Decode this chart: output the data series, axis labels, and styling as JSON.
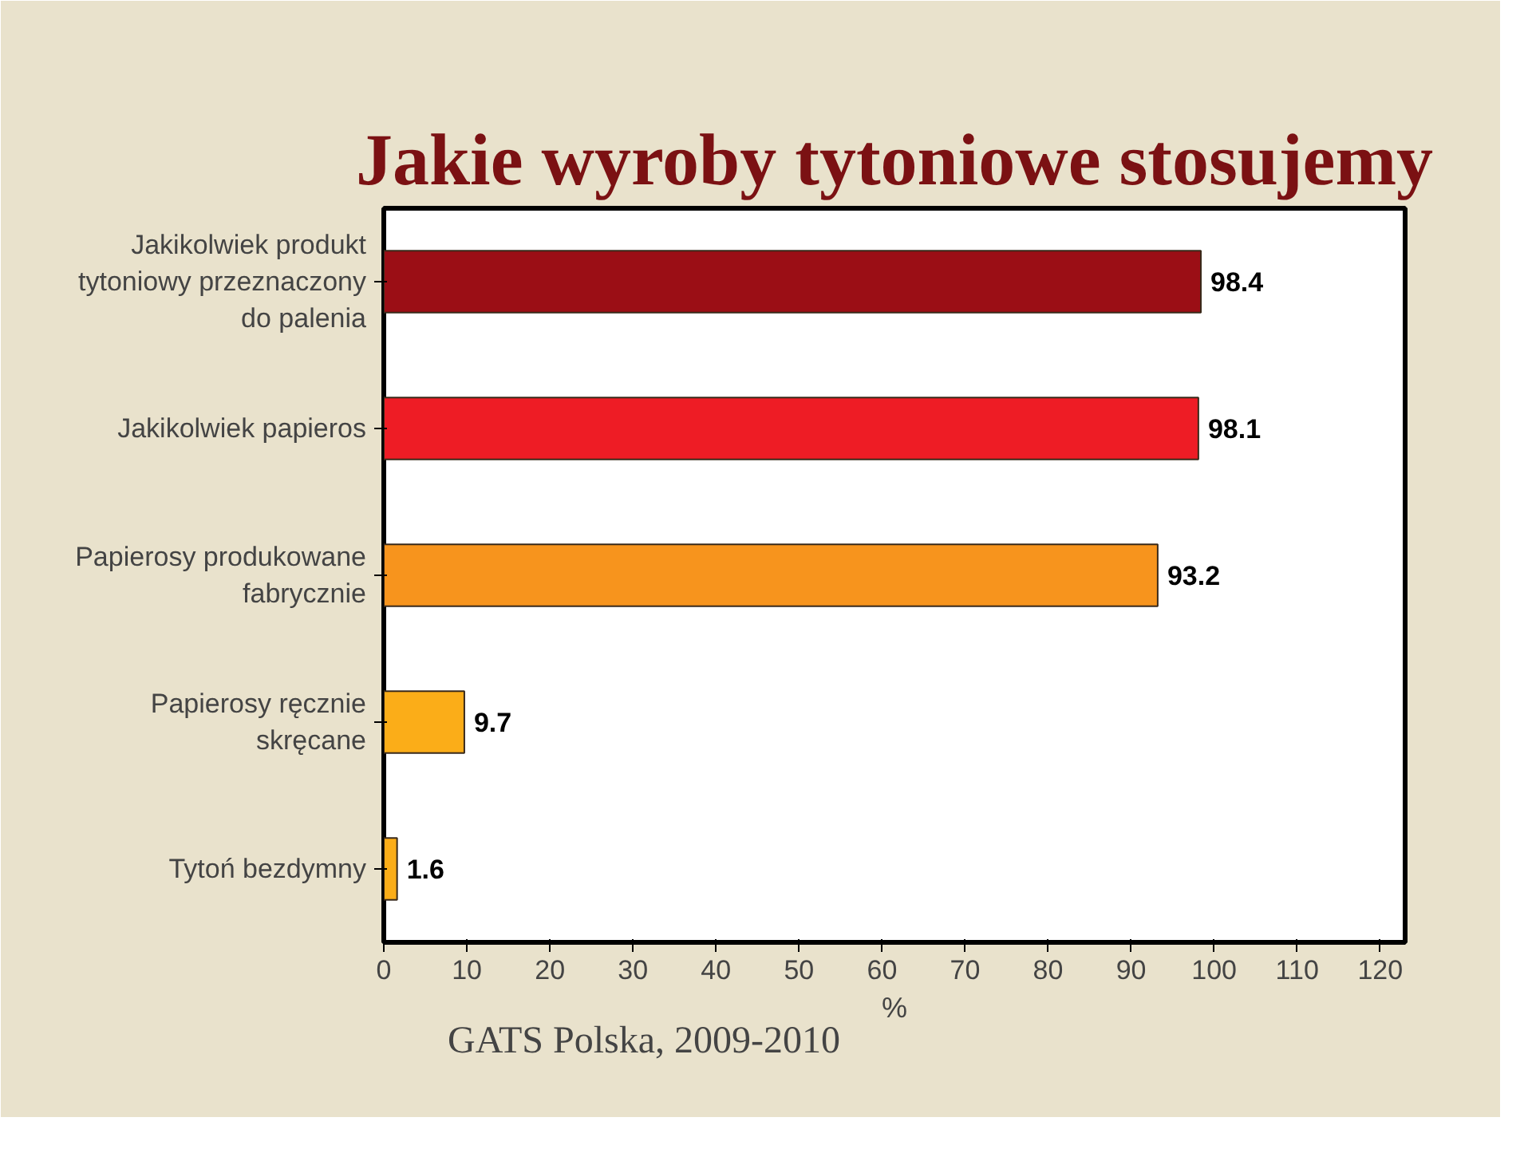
{
  "chart_data": {
    "type": "bar",
    "orientation": "horizontal",
    "title": "Jakie wyroby tytoniowe stosujemy",
    "categories": [
      "Jakikolwiek produkt tytoniowy przeznaczony do palenia",
      "Jakikolwiek papieros",
      "Papierosy produkowane fabrycznie",
      "Papierosy ręcznie skręcane",
      "Tytoń bezdymny"
    ],
    "values": [
      98.4,
      98.1,
      93.2,
      9.7,
      1.6
    ],
    "colors": [
      "#9b0e15",
      "#ee1c25",
      "#f7941d",
      "#fbad18",
      "#fbad18"
    ],
    "xlim": [
      0,
      123
    ],
    "xticks": [
      0,
      10,
      20,
      30,
      40,
      50,
      60,
      70,
      80,
      90,
      100,
      110,
      120
    ],
    "xlabel": "%",
    "data_labels": true,
    "grid": false,
    "annotations": [
      "GATS Polska, 2009-2010"
    ]
  }
}
